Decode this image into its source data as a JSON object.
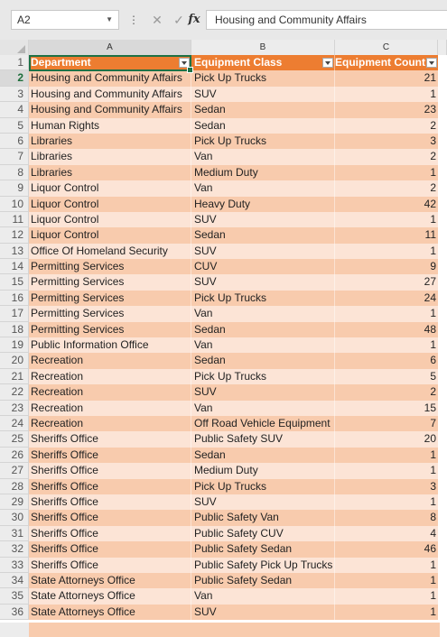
{
  "formula_bar": {
    "name_box": "A2",
    "cancel_icon": "cancel-x-icon",
    "enter_icon": "checkmark-icon",
    "fx_label": "fx",
    "content": "Housing and Community Affairs"
  },
  "columns": [
    "A",
    "B",
    "C"
  ],
  "header": {
    "row_number": "1",
    "department": "Department",
    "equipment_class": "Equipment Class",
    "equipment_count": "Equipment Count"
  },
  "rows": [
    {
      "n": "2",
      "dept": "Housing and Community Affairs",
      "cls": "Pick Up Trucks",
      "count": "21"
    },
    {
      "n": "3",
      "dept": "Housing and Community Affairs",
      "cls": "SUV",
      "count": "1"
    },
    {
      "n": "4",
      "dept": "Housing and Community Affairs",
      "cls": "Sedan",
      "count": "23"
    },
    {
      "n": "5",
      "dept": "Human Rights",
      "cls": "Sedan",
      "count": "2"
    },
    {
      "n": "6",
      "dept": "Libraries",
      "cls": "Pick Up Trucks",
      "count": "3"
    },
    {
      "n": "7",
      "dept": "Libraries",
      "cls": "Van",
      "count": "2"
    },
    {
      "n": "8",
      "dept": "Libraries",
      "cls": "Medium Duty",
      "count": "1"
    },
    {
      "n": "9",
      "dept": "Liquor Control",
      "cls": "Van",
      "count": "2"
    },
    {
      "n": "10",
      "dept": "Liquor Control",
      "cls": "Heavy Duty",
      "count": "42"
    },
    {
      "n": "11",
      "dept": "Liquor Control",
      "cls": "SUV",
      "count": "1"
    },
    {
      "n": "12",
      "dept": "Liquor Control",
      "cls": "Sedan",
      "count": "11"
    },
    {
      "n": "13",
      "dept": "Office Of Homeland Security",
      "cls": "SUV",
      "count": "1"
    },
    {
      "n": "14",
      "dept": "Permitting Services",
      "cls": "CUV",
      "count": "9"
    },
    {
      "n": "15",
      "dept": "Permitting Services",
      "cls": "SUV",
      "count": "27"
    },
    {
      "n": "16",
      "dept": "Permitting Services",
      "cls": "Pick Up Trucks",
      "count": "24"
    },
    {
      "n": "17",
      "dept": "Permitting Services",
      "cls": "Van",
      "count": "1"
    },
    {
      "n": "18",
      "dept": "Permitting Services",
      "cls": "Sedan",
      "count": "48"
    },
    {
      "n": "19",
      "dept": "Public Information Office",
      "cls": "Van",
      "count": "1"
    },
    {
      "n": "20",
      "dept": "Recreation",
      "cls": "Sedan",
      "count": "6"
    },
    {
      "n": "21",
      "dept": "Recreation",
      "cls": "Pick Up Trucks",
      "count": "5"
    },
    {
      "n": "22",
      "dept": "Recreation",
      "cls": "SUV",
      "count": "2"
    },
    {
      "n": "23",
      "dept": "Recreation",
      "cls": "Van",
      "count": "15"
    },
    {
      "n": "24",
      "dept": "Recreation",
      "cls": "Off Road Vehicle Equipment",
      "count": "7"
    },
    {
      "n": "25",
      "dept": "Sheriffs Office",
      "cls": "Public Safety SUV",
      "count": "20"
    },
    {
      "n": "26",
      "dept": "Sheriffs Office",
      "cls": "Sedan",
      "count": "1"
    },
    {
      "n": "27",
      "dept": "Sheriffs Office",
      "cls": "Medium Duty",
      "count": "1"
    },
    {
      "n": "28",
      "dept": "Sheriffs Office",
      "cls": "Pick Up Trucks",
      "count": "3"
    },
    {
      "n": "29",
      "dept": "Sheriffs Office",
      "cls": "SUV",
      "count": "1"
    },
    {
      "n": "30",
      "dept": "Sheriffs Office",
      "cls": "Public Safety Van",
      "count": "8"
    },
    {
      "n": "31",
      "dept": "Sheriffs Office",
      "cls": "Public Safety CUV",
      "count": "4"
    },
    {
      "n": "32",
      "dept": "Sheriffs Office",
      "cls": "Public Safety Sedan",
      "count": "46"
    },
    {
      "n": "33",
      "dept": "Sheriffs Office",
      "cls": "Public Safety Pick Up Trucks",
      "count": "1"
    },
    {
      "n": "34",
      "dept": "State Attorneys Office",
      "cls": "Public Safety Sedan",
      "count": "1"
    },
    {
      "n": "35",
      "dept": "State Attorneys Office",
      "cls": "Van",
      "count": "1"
    },
    {
      "n": "36",
      "dept": "State Attorneys Office",
      "cls": "SUV",
      "count": "1"
    }
  ],
  "colors": {
    "header_fill": "#ed7d31",
    "band_dark": "#f8cbad",
    "band_light": "#fce4d6",
    "selection": "#1e7145"
  }
}
